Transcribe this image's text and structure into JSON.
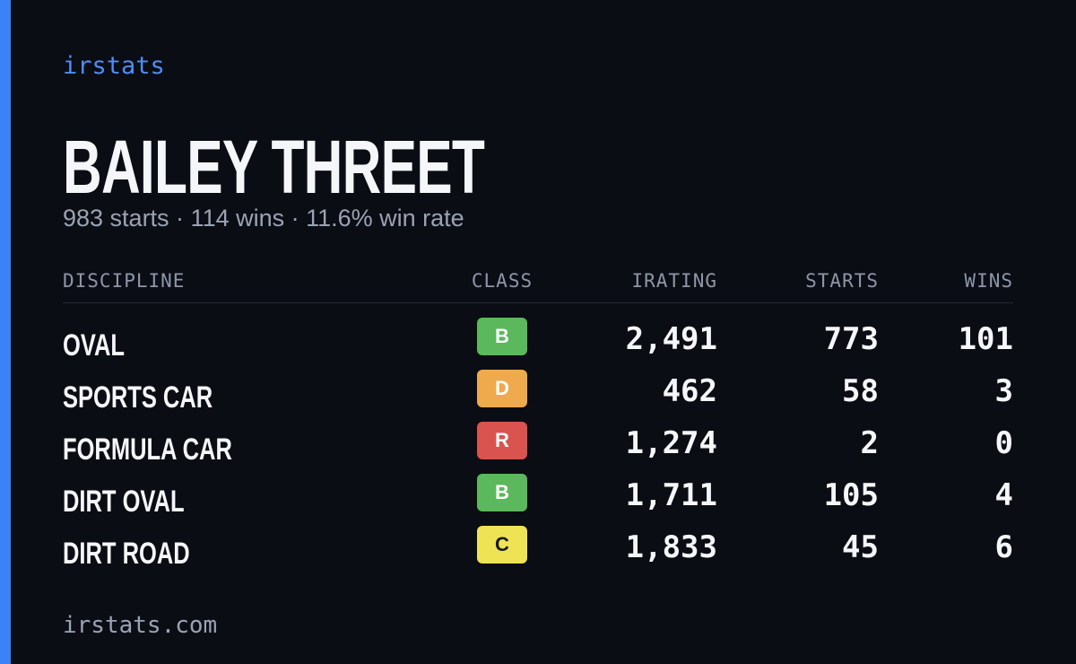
{
  "brand": "irstats",
  "driver": {
    "name": "BAILEY THREET",
    "summary": "983 starts · 114 wins · 11.6% win rate"
  },
  "table": {
    "headers": [
      "DISCIPLINE",
      "CLASS",
      "IRATING",
      "STARTS",
      "WINS"
    ],
    "rows": [
      [
        "OVAL",
        "B",
        "2,491",
        "773",
        "101"
      ],
      [
        "SPORTS CAR",
        "D",
        "462",
        "58",
        "3"
      ],
      [
        "FORMULA CAR",
        "R",
        "1,274",
        "2",
        "0"
      ],
      [
        "DIRT OVAL",
        "B",
        "1,711",
        "105",
        "4"
      ],
      [
        "DIRT ROAD",
        "C",
        "1,833",
        "45",
        "6"
      ]
    ],
    "class_colors": {
      "B": "#5cb85c",
      "D": "#eeaa4c",
      "R": "#d9534f",
      "C": "#eee354"
    }
  },
  "footer": "irstats.com"
}
